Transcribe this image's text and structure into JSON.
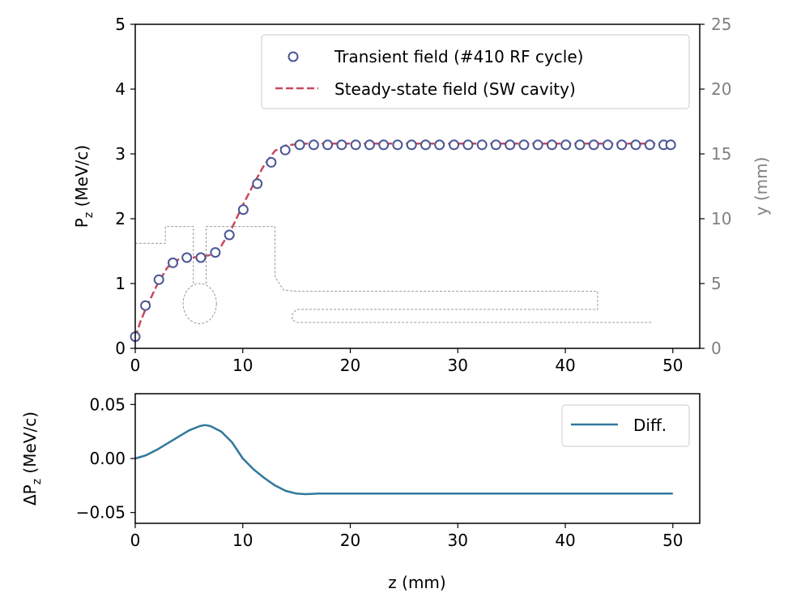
{
  "chart_data": [
    {
      "type": "scatter+line",
      "panel": "top",
      "xlabel": "",
      "ylabel": "P_z (MeV/c)",
      "ylabel_main": "P",
      "ylabel_sub": "z",
      "ylabel_rest": " (MeV/c)",
      "y2label": "y (mm)",
      "xlim": [
        0,
        52.5
      ],
      "ylim": [
        0,
        5
      ],
      "y2lim": [
        0,
        25
      ],
      "xticks": [
        0,
        10,
        20,
        30,
        40,
        50
      ],
      "yticks": [
        0,
        1,
        2,
        3,
        4,
        5
      ],
      "y2ticks": [
        0,
        5,
        10,
        15,
        20,
        25
      ],
      "legend_position": "top-right",
      "series": [
        {
          "name": "Transient field (#410 RF cycle)",
          "kind": "scatter",
          "marker": "open-circle",
          "color": "#4a5595",
          "x": [
            0,
            0.95,
            2.2,
            3.5,
            4.8,
            6.1,
            7.45,
            8.75,
            10.05,
            11.35,
            12.65,
            13.95,
            15.3,
            16.6,
            17.9,
            19.2,
            20.5,
            21.8,
            23.1,
            24.4,
            25.7,
            27.0,
            28.3,
            29.65,
            30.95,
            32.25,
            33.55,
            34.85,
            36.15,
            37.45,
            38.75,
            40.05,
            41.35,
            42.65,
            43.95,
            45.25,
            46.55,
            47.85,
            49.15,
            49.8
          ],
          "y": [
            0.18,
            0.66,
            1.06,
            1.32,
            1.4,
            1.4,
            1.48,
            1.75,
            2.14,
            2.54,
            2.87,
            3.06,
            3.14,
            3.14,
            3.14,
            3.14,
            3.14,
            3.14,
            3.14,
            3.14,
            3.14,
            3.14,
            3.14,
            3.14,
            3.14,
            3.14,
            3.14,
            3.14,
            3.14,
            3.14,
            3.14,
            3.14,
            3.14,
            3.14,
            3.14,
            3.14,
            3.14,
            3.14,
            3.14,
            3.14
          ]
        },
        {
          "name": "Steady-state field (SW cavity)",
          "kind": "line",
          "dash": "dashed",
          "color": "#c8485f",
          "x": [
            0,
            0.5,
            1,
            2,
            3,
            4,
            5,
            6,
            7,
            8,
            9,
            10,
            11,
            12,
            13,
            14,
            15,
            16,
            18,
            20,
            30,
            40,
            50
          ],
          "y": [
            0.17,
            0.42,
            0.62,
            0.97,
            1.25,
            1.37,
            1.4,
            1.41,
            1.44,
            1.58,
            1.86,
            2.21,
            2.53,
            2.83,
            3.05,
            3.13,
            3.15,
            3.16,
            3.16,
            3.16,
            3.16,
            3.16,
            3.16
          ]
        }
      ],
      "geometry_outline": {
        "axis": "y2",
        "units": "mm",
        "color": "#999999",
        "style": "dashed",
        "paths": [
          [
            [
              0,
              8.1
            ],
            [
              2.8,
              8.1
            ],
            [
              2.8,
              9.4
            ],
            [
              5.4,
              9.4
            ],
            [
              5.4,
              5.0
            ]
          ],
          [
            [
              6.6,
              5.0
            ],
            [
              6.6,
              9.4
            ],
            [
              13.0,
              9.4
            ],
            [
              13.0,
              5.5
            ],
            [
              13.8,
              4.5
            ],
            [
              15.0,
              4.4
            ],
            [
              43.0,
              4.4
            ],
            [
              43.0,
              3.0
            ],
            [
              15.0,
              3.0
            ],
            [
              14.6,
              2.6
            ],
            [
              14.6,
              2.2
            ],
            [
              15.0,
              2.0
            ],
            [
              48.0,
              2.0
            ]
          ]
        ],
        "iris_ellipse": {
          "cx": 6.0,
          "cy": 3.45,
          "rx": 1.55,
          "ry": 1.55
        }
      }
    },
    {
      "type": "line",
      "panel": "bottom",
      "xlabel": "z (mm)",
      "ylabel": "ΔP_z (MeV/c)",
      "ylabel_main": "ΔP",
      "ylabel_sub": "z",
      "ylabel_rest": " (MeV/c)",
      "xlim": [
        0,
        52.5
      ],
      "ylim": [
        -0.06,
        0.06
      ],
      "xticks": [
        0,
        10,
        20,
        30,
        40,
        50
      ],
      "yticks": [
        0.05,
        0.0,
        -0.05
      ],
      "ytick_labels": [
        "0.05",
        "0.00",
        "−0.05"
      ],
      "legend_position": "top-right",
      "series": [
        {
          "name": "Diff.",
          "color": "#31789d",
          "x": [
            0,
            1,
            2,
            3,
            4,
            5,
            6,
            6.5,
            7,
            8,
            9,
            10,
            11,
            12,
            13,
            14,
            15,
            15.8,
            17,
            20,
            30,
            40,
            50
          ],
          "y": [
            0.0,
            0.003,
            0.008,
            0.014,
            0.02,
            0.026,
            0.03,
            0.031,
            0.03,
            0.025,
            0.015,
            0.0,
            -0.01,
            -0.018,
            -0.025,
            -0.03,
            -0.0325,
            -0.033,
            -0.0325,
            -0.0325,
            -0.0325,
            -0.0325,
            -0.0325
          ]
        }
      ]
    }
  ]
}
